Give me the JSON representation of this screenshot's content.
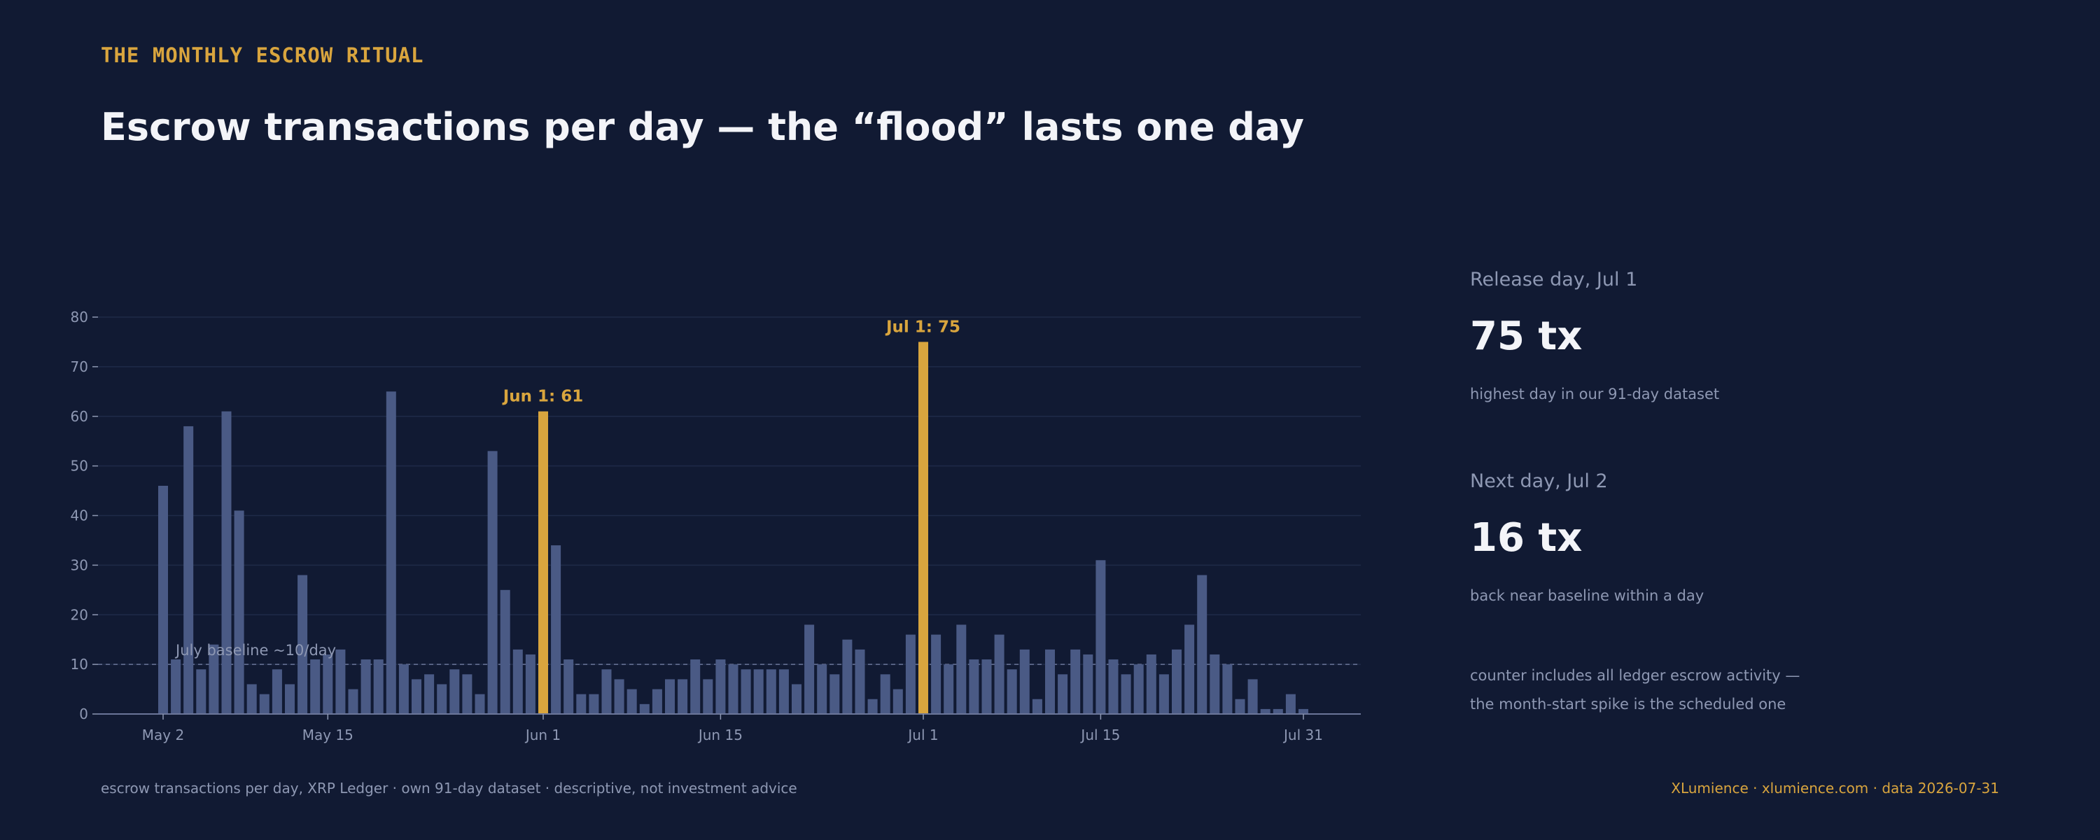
{
  "header": {
    "kicker": "THE MONTHLY ESCROW RITUAL",
    "title": "Escrow transactions per day — the “flood” lasts one day"
  },
  "side_panel": {
    "stat1": {
      "label": "Release day, Jul 1",
      "value": "75 tx",
      "note": "highest day in our 91-day dataset"
    },
    "stat2": {
      "label": "Next day, Jul 2",
      "value": "16 tx",
      "note": "back near baseline within a day"
    },
    "note_lines": [
      "counter includes all ledger escrow activity —",
      "the month-start spike is the scheduled one"
    ]
  },
  "footer": {
    "left": "escrow transactions per day, XRP Ledger · own 91-day dataset · descriptive, not investment advice",
    "right": "XLumience · xlumience.com · data 2026-07-31"
  },
  "colors": {
    "background": "#111a33",
    "bar": "#4a5a85",
    "highlight": "#d9a53e",
    "grid": "#1f2a48",
    "text_muted": "#8e98b3",
    "text_main": "#f3f4f8"
  },
  "chart_data": {
    "type": "bar",
    "title": "Escrow transactions per day — the “flood” lasts one day",
    "xlabel": "",
    "ylabel": "",
    "ylim": [
      0,
      80
    ],
    "yticks": [
      0,
      10,
      20,
      30,
      40,
      50,
      60,
      70,
      80
    ],
    "grid": true,
    "x_start": "May 2",
    "xtick_labels": [
      {
        "label": "May 2",
        "index": 0
      },
      {
        "label": "May 15",
        "index": 13
      },
      {
        "label": "Jun 1",
        "index": 30
      },
      {
        "label": "Jun 15",
        "index": 44
      },
      {
        "label": "Jul 1",
        "index": 60
      },
      {
        "label": "Jul 15",
        "index": 74
      },
      {
        "label": "Jul 31",
        "index": 90
      }
    ],
    "values": [
      46,
      11,
      58,
      9,
      14,
      61,
      41,
      6,
      4,
      9,
      6,
      28,
      11,
      12,
      13,
      5,
      11,
      11,
      65,
      10,
      7,
      8,
      6,
      9,
      8,
      4,
      53,
      25,
      13,
      12,
      61,
      34,
      11,
      4,
      4,
      9,
      7,
      5,
      2,
      5,
      7,
      7,
      11,
      7,
      11,
      10,
      9,
      9,
      9,
      9,
      6,
      18,
      10,
      8,
      15,
      13,
      3,
      8,
      5,
      16,
      75,
      16,
      10,
      18,
      11,
      11,
      16,
      9,
      13,
      3,
      13,
      8,
      13,
      12,
      31,
      11,
      8,
      10,
      12,
      8,
      13,
      18,
      28,
      12,
      10,
      3,
      7,
      1,
      1,
      4,
      1
    ],
    "highlights": [
      {
        "index": 30,
        "label": "Jun 1: 61"
      },
      {
        "index": 60,
        "label": "Jul 1: 75"
      }
    ],
    "baseline": {
      "value": 10,
      "label": "July baseline ~10/day"
    }
  }
}
